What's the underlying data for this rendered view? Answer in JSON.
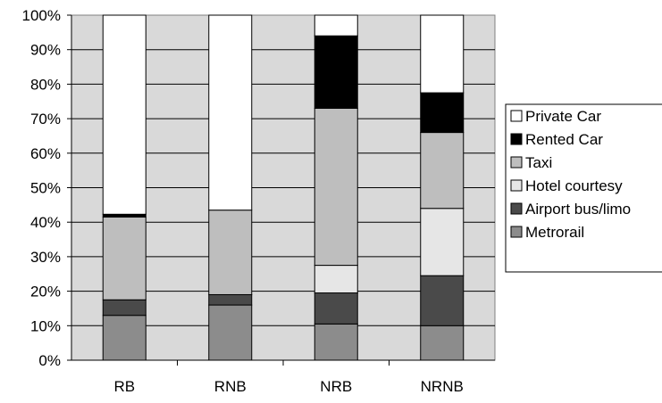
{
  "chart_data": {
    "type": "bar",
    "stacked": true,
    "percent": true,
    "categories": [
      "RB",
      "RNB",
      "NRB",
      "NRNB"
    ],
    "series": [
      {
        "name": "Metrorail",
        "color": "#8c8c8c",
        "values": [
          13,
          16,
          10.5,
          10
        ]
      },
      {
        "name": "Airport bus/limo",
        "color": "#4a4a4a",
        "values": [
          4.5,
          3,
          9,
          14.5
        ]
      },
      {
        "name": "Hotel courtesy",
        "color": "#e6e6e6",
        "values": [
          0,
          0,
          8,
          19.5
        ]
      },
      {
        "name": "Taxi",
        "color": "#bebebe",
        "values": [
          24,
          24.5,
          45.5,
          22
        ]
      },
      {
        "name": "Rented Car",
        "color": "#000000",
        "values": [
          0.8,
          0,
          21,
          11.5
        ]
      },
      {
        "name": "Private Car",
        "color": "#ffffff",
        "values": [
          57.7,
          56.5,
          6,
          22.5
        ]
      }
    ],
    "ylim": [
      0,
      100
    ],
    "yticks": [
      "0%",
      "10%",
      "20%",
      "30%",
      "40%",
      "50%",
      "60%",
      "70%",
      "80%",
      "90%",
      "100%"
    ],
    "grid": true,
    "plot_background": "#d9d9d9",
    "legend": {
      "placement": "right",
      "entries": [
        "Private Car",
        "Rented Car",
        "Taxi",
        "Hotel courtesy",
        "Airport bus/limo",
        "Metrorail"
      ]
    }
  }
}
